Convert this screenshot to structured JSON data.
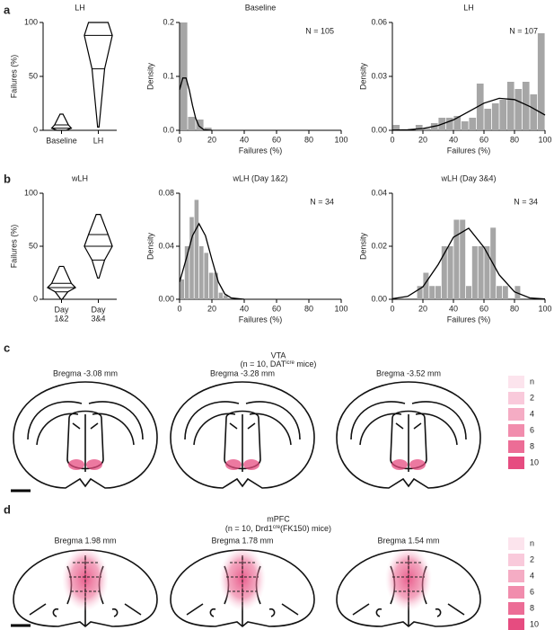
{
  "chart_data": [
    {
      "type": "violin",
      "title": "LH",
      "ylabel": "Failures (%)",
      "categories": [
        "Baseline",
        "LH"
      ],
      "stats": [
        {
          "min": 0,
          "q1": 0,
          "median": 2,
          "q3": 5,
          "max": 15
        },
        {
          "min": 3,
          "q1": 57,
          "median": 88,
          "q3": 100,
          "max": 100
        }
      ],
      "ylim": [
        0,
        100
      ],
      "yticks": [
        0,
        50,
        100
      ],
      "color": "#000000"
    },
    {
      "type": "histogram",
      "title": "Baseline",
      "annotation": "N = 105",
      "xlabel": "Failures (%)",
      "ylabel": "Density",
      "bins": [
        0,
        5,
        10,
        15,
        20
      ],
      "values": [
        0.2,
        0.025,
        0.02,
        0.005
      ],
      "color": "#a6a6a6",
      "curve": {
        "x": [
          0,
          2,
          4,
          6,
          8,
          10,
          12,
          15,
          20
        ],
        "values": [
          0.075,
          0.097,
          0.097,
          0.075,
          0.046,
          0.022,
          0.008,
          0.001,
          0
        ]
      },
      "xlim": [
        0,
        100
      ],
      "xticks": [
        0,
        20,
        40,
        60,
        80,
        100
      ],
      "ylim": [
        0,
        0.2
      ],
      "yticks": [
        {
          "value": 0,
          "label": "0.0"
        },
        0.1,
        0.2
      ]
    },
    {
      "type": "histogram",
      "title": "LH",
      "annotation": "N = 107",
      "xlabel": "Failures (%)",
      "ylabel": "Density",
      "bins": [
        0,
        5,
        10,
        15,
        20,
        25,
        30,
        35,
        40,
        45,
        50,
        55,
        60,
        65,
        70,
        75,
        80,
        85,
        90,
        95,
        100
      ],
      "values": [
        0.003,
        0,
        0,
        0.003,
        0.001,
        0.004,
        0.007,
        0.007,
        0.008,
        0.005,
        0.007,
        0.026,
        0.012,
        0.015,
        0.017,
        0.027,
        0.023,
        0.027,
        0.02,
        0.054
      ],
      "color": "#a6a6a6",
      "curve": {
        "x": [
          0,
          10,
          20,
          30,
          40,
          50,
          60,
          70,
          80,
          90,
          100
        ],
        "values": [
          0.0001,
          0.0003,
          0.001,
          0.0027,
          0.0058,
          0.0104,
          0.0151,
          0.0178,
          0.0171,
          0.0133,
          0.0085
        ]
      },
      "xlim": [
        0,
        100
      ],
      "xticks": [
        0,
        20,
        40,
        60,
        80,
        100
      ],
      "ylim": [
        0,
        0.06
      ],
      "yticks": [
        {
          "value": 0,
          "label": "0.00"
        },
        0.03,
        0.06
      ]
    },
    {
      "type": "violin",
      "title": "wLH",
      "ylabel": "Failures (%)",
      "categories": [
        [
          "Day",
          "1&2"
        ],
        [
          "Day",
          "3&4"
        ]
      ],
      "stats": [
        {
          "min": 0,
          "q1": 7,
          "median": 11,
          "q3": 15,
          "max": 31
        },
        {
          "min": 20,
          "q1": 37,
          "median": 50,
          "q3": 61,
          "max": 80
        }
      ],
      "ylim": [
        0,
        100
      ],
      "yticks": [
        0,
        50,
        100
      ],
      "color": "#000000"
    },
    {
      "type": "histogram",
      "title": "wLH (Day 1&2)",
      "annotation": "N = 34",
      "xlabel": "Failures (%)",
      "ylabel": "Density",
      "bins": [
        0,
        3,
        6,
        9,
        12,
        15,
        18,
        21,
        24,
        27,
        30
      ],
      "values": [
        0.015,
        0.04,
        0.062,
        0.075,
        0.04,
        0.035,
        0.02,
        0.02,
        0.005,
        0.003
      ],
      "color": "#a6a6a6",
      "curve": {
        "x": [
          0,
          4,
          8,
          12,
          16,
          20,
          24,
          28,
          32,
          40
        ],
        "values": [
          0.013,
          0.03,
          0.048,
          0.057,
          0.048,
          0.03,
          0.013,
          0.004,
          0.001,
          0
        ]
      },
      "xlim": [
        0,
        100
      ],
      "xticks": [
        0,
        20,
        40,
        60,
        80,
        100
      ],
      "ylim": [
        0,
        0.08
      ],
      "yticks": [
        {
          "value": 0,
          "label": "0.00"
        },
        0.04,
        0.08
      ]
    },
    {
      "type": "histogram",
      "title": "wLH (Day 3&4)",
      "annotation": "N = 34",
      "xlabel": "Failures (%)",
      "ylabel": "Density",
      "bins": [
        16,
        20,
        24,
        28,
        32,
        36,
        40,
        44,
        48,
        52,
        56,
        60,
        64,
        68,
        72,
        76,
        80,
        84
      ],
      "values": [
        0.005,
        0.01,
        0.005,
        0.005,
        0.02,
        0.02,
        0.03,
        0.03,
        0.005,
        0.02,
        0.02,
        0.02,
        0.027,
        0.005,
        0.005,
        0,
        0.005
      ],
      "color": "#a6a6a6",
      "curve": {
        "x": [
          0,
          10,
          20,
          30,
          40,
          50,
          60,
          70,
          80,
          90,
          100
        ],
        "values": [
          0.0002,
          0.0011,
          0.0047,
          0.0131,
          0.0234,
          0.0268,
          0.0196,
          0.0092,
          0.0028,
          0.0005,
          0.0001
        ]
      },
      "xlim": [
        0,
        100
      ],
      "xticks": [
        0,
        20,
        40,
        60,
        80,
        100
      ],
      "ylim": [
        0,
        0.04
      ],
      "yticks": [
        {
          "value": 0,
          "label": "0.00"
        },
        0.02,
        0.04
      ]
    }
  ],
  "panels": [
    "a",
    "b",
    "c",
    "d"
  ],
  "vta": {
    "title": "VTA",
    "sub_pre": "(n = 10, DAT",
    "sub_sup": "icre",
    "sub_post": " mice)",
    "sections": [
      "Bregma -3.08 mm",
      "Bregma -3.28 mm",
      "Bregma -3.52 mm"
    ]
  },
  "mpfc": {
    "title": "mPFC",
    "sub_pre": "(n = 10, Drd1",
    "sub_sup": "cre",
    "sub_post": "(FK150) mice)",
    "sections": [
      "Bregma 1.98 mm",
      "Bregma 1.78 mm",
      "Bregma 1.54 mm"
    ]
  },
  "legend": {
    "labels": [
      "n",
      2,
      4,
      6,
      8,
      10
    ],
    "colors": [
      "#fce4ed",
      "#f9cadb",
      "#f5acc4",
      "#f18dad",
      "#ec6d96",
      "#e64c80"
    ]
  }
}
